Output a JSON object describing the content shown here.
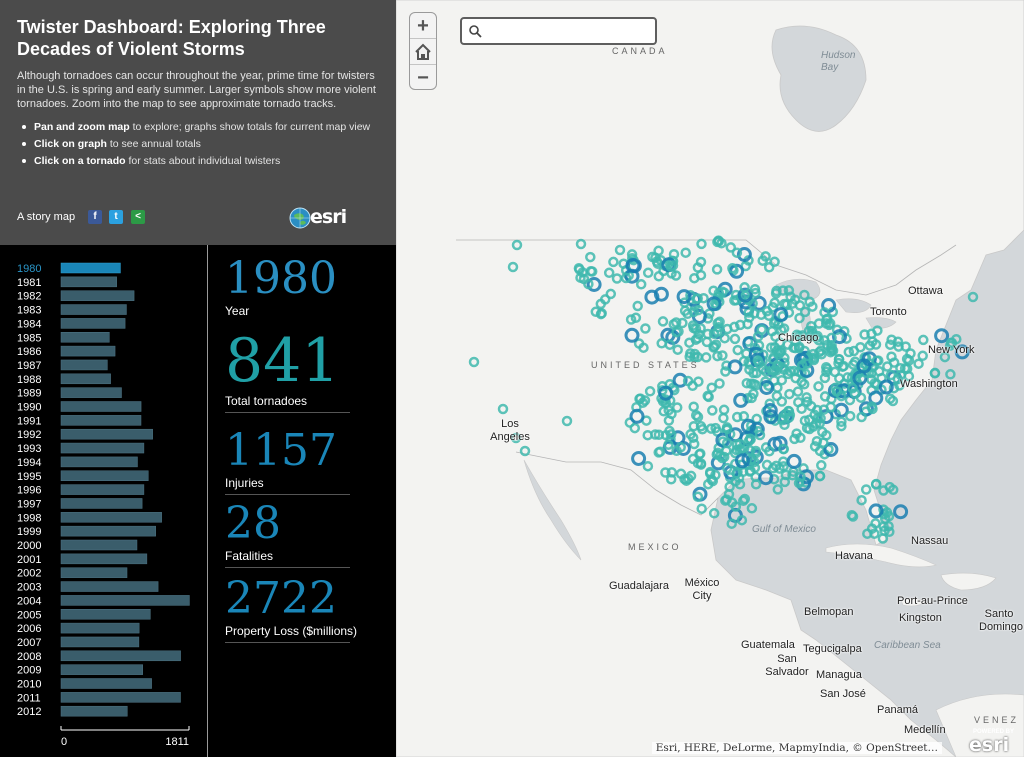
{
  "header": {
    "title": "Twister Dashboard: Exploring Three Decades of Violent Storms",
    "description": "Although tornadoes can occur throughout the year, prime time for twisters in the U.S. is spring and early summer. Larger symbols show more violent tornadoes. Zoom into the map to see approximate tornado tracks.",
    "instructions": [
      {
        "bold": "Pan and zoom map",
        "text": " to explore; graphs show totals for current map view"
      },
      {
        "bold": "Click on graph",
        "text": " to see annual totals"
      },
      {
        "bold": "Click on a tornado",
        "text": " for stats about individual twisters"
      }
    ],
    "story_map_label": "A story map",
    "share": {
      "facebook": "f",
      "twitter": "t",
      "link": "<"
    },
    "logo_text": "esri"
  },
  "chart_data": {
    "type": "bar",
    "orientation": "horizontal",
    "selected": "1980",
    "categories": [
      "1980",
      "1981",
      "1982",
      "1983",
      "1984",
      "1985",
      "1986",
      "1987",
      "1988",
      "1989",
      "1990",
      "1991",
      "1992",
      "1993",
      "1994",
      "1995",
      "1996",
      "1997",
      "1998",
      "1999",
      "2000",
      "2001",
      "2002",
      "2003",
      "2004",
      "2005",
      "2006",
      "2007",
      "2008",
      "2009",
      "2010",
      "2011",
      "2012"
    ],
    "values": [
      841,
      788,
      1034,
      926,
      907,
      684,
      765,
      656,
      702,
      856,
      1133,
      1132,
      1297,
      1173,
      1082,
      1235,
      1173,
      1148,
      1424,
      1340,
      1075,
      1215,
      934,
      1374,
      1817,
      1264,
      1106,
      1102,
      1692,
      1156,
      1282,
      1691,
      938
    ],
    "xlim": [
      0,
      1811
    ],
    "xticks": [
      "0",
      "1811"
    ]
  },
  "stats": {
    "year": {
      "value": "1980",
      "label": "Year"
    },
    "total": {
      "value": "841",
      "label": "Total tornadoes"
    },
    "injuries": {
      "value": "1157",
      "label": "Injuries"
    },
    "fatalities": {
      "value": "28",
      "label": "Fatalities"
    },
    "loss": {
      "value": "2722",
      "label": "Property Loss ($millions)"
    }
  },
  "map": {
    "search_placeholder": "",
    "zoom_in": "+",
    "zoom_out": "−",
    "countries": {
      "canada": "CANADA",
      "usa": "UNITED STATES",
      "mexico": "MEXICO",
      "venezuela": "VENEZ"
    },
    "water": {
      "hudson_bay": "Hudson Bay",
      "gulf": "Gulf of Mexico",
      "caribbean": "Caribbean Sea"
    },
    "cities": {
      "ottawa": "Ottawa",
      "toronto": "Toronto",
      "chicago": "Chicago",
      "new_york": "New York",
      "washington": "Washington",
      "los_angeles": "Los Angeles",
      "havana": "Havana",
      "nassau": "Nassau",
      "guadalajara": "Guadalajara",
      "mexico_city": "México City",
      "belmopan": "Belmopan",
      "port_au_prince": "Port-au-Prince",
      "kingston": "Kingston",
      "santo_domingo": "Santo Domingo",
      "guatemala": "Guatemala",
      "tegucigalpa": "Tegucigalpa",
      "san_salvador": "San Salvador",
      "managua": "Managua",
      "san_jose": "San José",
      "panama": "Panamá",
      "medellin": "Medellín"
    },
    "attribution": "Esri, HERE, DeLorme, MapmyIndia, © OpenStreet…",
    "powered_by_small": "POWERED BY",
    "powered_by_logo": "esri",
    "tornado_color_light": "#3fb8ae",
    "tornado_color_dark": "#1a7fb0"
  }
}
